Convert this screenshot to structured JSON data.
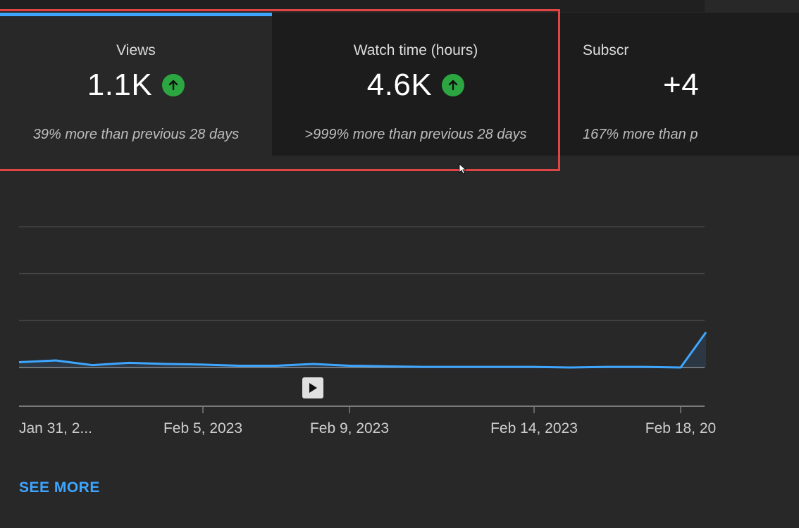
{
  "metrics": [
    {
      "label": "Views",
      "value": "1.1K",
      "trend_icon": "arrow-up-icon",
      "comparison": "39% more than previous 28 days",
      "selected": true
    },
    {
      "label": "Watch time (hours)",
      "value": "4.6K",
      "trend_icon": "arrow-up-icon",
      "comparison": ">999% more than previous 28 days",
      "selected": false
    },
    {
      "label": "Subscr",
      "value": "+4",
      "comparison": "167% more than p",
      "selected": false
    }
  ],
  "colors": {
    "accent": "#3ea6ff",
    "trend_up": "#2ba640",
    "highlight": "#e04545",
    "background": "#282828",
    "card_inactive": "#1c1c1c"
  },
  "chart_data": {
    "type": "line",
    "x_labels": [
      "Jan 31, 2...",
      "Feb 5, 2023",
      "Feb 9, 2023",
      "Feb 14, 2023",
      "Feb 18, 20"
    ],
    "x": [
      "Jan 31",
      "Feb 1",
      "Feb 2",
      "Feb 3",
      "Feb 4",
      "Feb 5",
      "Feb 6",
      "Feb 7",
      "Feb 8",
      "Feb 9",
      "Feb 10",
      "Feb 11",
      "Feb 12",
      "Feb 13",
      "Feb 14",
      "Feb 15",
      "Feb 16",
      "Feb 17",
      "Feb 18",
      "Feb 19"
    ],
    "values": [
      9,
      12,
      4,
      8,
      6,
      5,
      3,
      3,
      6,
      3,
      2,
      1,
      1,
      1,
      1,
      0,
      1,
      1,
      0,
      60
    ],
    "ylim": [
      0,
      240
    ],
    "grid": true,
    "series_color": "#3ea6ff"
  },
  "play_icon": "play-icon",
  "see_more_label": "SEE MORE"
}
